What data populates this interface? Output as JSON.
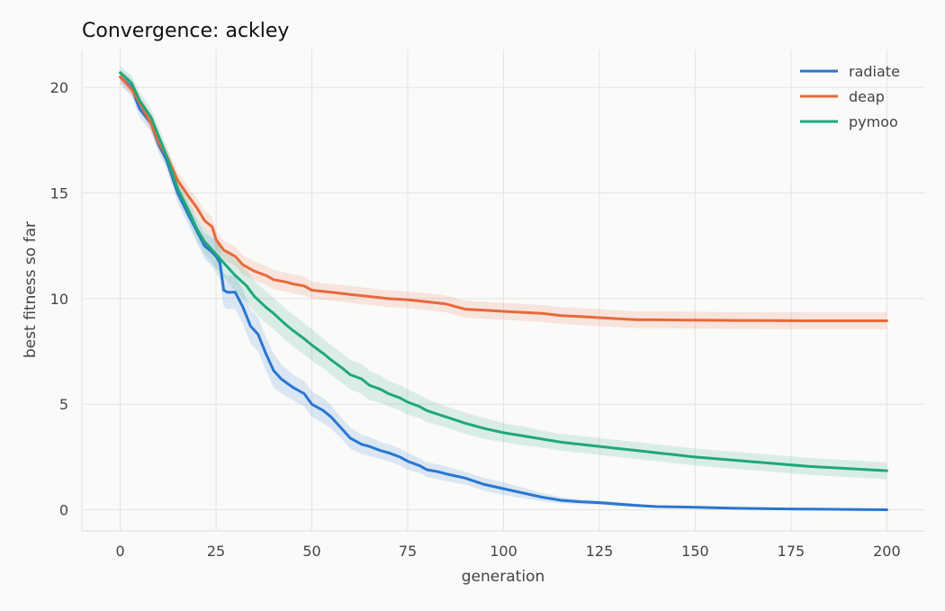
{
  "chart_data": {
    "type": "line",
    "title": "Convergence: ackley",
    "xlabel": "generation",
    "ylabel": "best fitness so far",
    "xlim": [
      -10,
      210
    ],
    "ylim": [
      -1.0,
      21.8
    ],
    "xticks": [
      0,
      25,
      50,
      75,
      100,
      125,
      150,
      175,
      200
    ],
    "yticks": [
      0,
      5,
      10,
      15,
      20
    ],
    "grid": true,
    "legend_position": "top-right",
    "series": [
      {
        "name": "radiate",
        "color": "#2a76d2",
        "band_color": "#2a76d2",
        "x": [
          0,
          3,
          5,
          8,
          10,
          12,
          15,
          18,
          20,
          22,
          24,
          25,
          26,
          27,
          28,
          30,
          32,
          34,
          36,
          38,
          40,
          42,
          45,
          48,
          50,
          53,
          55,
          58,
          60,
          63,
          65,
          68,
          70,
          73,
          75,
          78,
          80,
          83,
          85,
          90,
          95,
          100,
          105,
          110,
          115,
          120,
          125,
          130,
          135,
          140,
          150,
          160,
          170,
          180,
          190,
          200
        ],
        "y": [
          20.5,
          20.0,
          19.0,
          18.3,
          17.3,
          16.6,
          15.0,
          13.9,
          13.2,
          12.5,
          12.2,
          12.0,
          11.7,
          10.4,
          10.3,
          10.3,
          9.6,
          8.7,
          8.3,
          7.4,
          6.6,
          6.2,
          5.8,
          5.5,
          5.0,
          4.7,
          4.4,
          3.8,
          3.4,
          3.1,
          3.0,
          2.8,
          2.7,
          2.5,
          2.3,
          2.1,
          1.9,
          1.8,
          1.7,
          1.5,
          1.2,
          1.0,
          0.8,
          0.6,
          0.45,
          0.38,
          0.34,
          0.27,
          0.2,
          0.15,
          0.12,
          0.08,
          0.05,
          0.03,
          0.02,
          0.0
        ],
        "band": [
          0.35,
          0.4,
          0.4,
          0.4,
          0.4,
          0.4,
          0.45,
          0.5,
          0.55,
          0.6,
          0.7,
          0.75,
          0.8,
          0.8,
          0.8,
          0.8,
          0.8,
          0.8,
          0.8,
          0.8,
          0.8,
          0.7,
          0.6,
          0.6,
          0.6,
          0.6,
          0.55,
          0.5,
          0.5,
          0.45,
          0.45,
          0.4,
          0.4,
          0.4,
          0.4,
          0.35,
          0.35,
          0.35,
          0.35,
          0.3,
          0.3,
          0.3,
          0.25,
          0.2,
          0.15,
          0.12,
          0.1,
          0.1,
          0.08,
          0.06,
          0.05,
          0.04,
          0.03,
          0.02,
          0.02,
          0.02
        ]
      },
      {
        "name": "deap",
        "color": "#e8693a",
        "band_color": "#e8693a",
        "x": [
          0,
          3,
          5,
          8,
          10,
          12,
          15,
          18,
          20,
          22,
          24,
          25,
          27,
          30,
          32,
          35,
          38,
          40,
          43,
          45,
          48,
          50,
          55,
          60,
          65,
          70,
          75,
          80,
          85,
          88,
          90,
          95,
          100,
          105,
          110,
          115,
          120,
          125,
          130,
          135,
          140,
          150,
          160,
          170,
          180,
          190,
          200
        ],
        "y": [
          20.5,
          19.9,
          19.3,
          18.3,
          17.4,
          16.8,
          15.6,
          14.8,
          14.3,
          13.7,
          13.4,
          12.8,
          12.3,
          12.0,
          11.6,
          11.3,
          11.1,
          10.9,
          10.8,
          10.7,
          10.6,
          10.4,
          10.3,
          10.2,
          10.1,
          10.0,
          9.95,
          9.85,
          9.75,
          9.6,
          9.5,
          9.45,
          9.4,
          9.35,
          9.3,
          9.2,
          9.15,
          9.1,
          9.05,
          9.0,
          9.0,
          8.98,
          8.97,
          8.96,
          8.95,
          8.95,
          8.95
        ],
        "band": [
          0.3,
          0.3,
          0.35,
          0.35,
          0.35,
          0.4,
          0.4,
          0.4,
          0.45,
          0.45,
          0.45,
          0.45,
          0.45,
          0.45,
          0.45,
          0.45,
          0.45,
          0.45,
          0.45,
          0.45,
          0.45,
          0.4,
          0.4,
          0.4,
          0.4,
          0.4,
          0.4,
          0.4,
          0.4,
          0.4,
          0.4,
          0.4,
          0.4,
          0.4,
          0.4,
          0.4,
          0.4,
          0.4,
          0.4,
          0.4,
          0.4,
          0.4,
          0.4,
          0.4,
          0.4,
          0.4,
          0.4
        ]
      },
      {
        "name": "pymoo",
        "color": "#1fa87a",
        "band_color": "#1fa87a",
        "x": [
          0,
          3,
          5,
          8,
          10,
          12,
          15,
          18,
          20,
          22,
          25,
          28,
          30,
          33,
          35,
          38,
          40,
          43,
          45,
          48,
          50,
          53,
          55,
          58,
          60,
          63,
          65,
          68,
          70,
          73,
          75,
          78,
          80,
          85,
          90,
          95,
          100,
          105,
          110,
          115,
          120,
          125,
          130,
          135,
          140,
          145,
          150,
          160,
          170,
          180,
          190,
          200
        ],
        "y": [
          20.7,
          20.2,
          19.4,
          18.6,
          17.7,
          16.8,
          15.2,
          14.1,
          13.3,
          12.7,
          12.1,
          11.5,
          11.1,
          10.6,
          10.1,
          9.6,
          9.3,
          8.8,
          8.5,
          8.1,
          7.8,
          7.4,
          7.1,
          6.7,
          6.4,
          6.2,
          5.9,
          5.7,
          5.5,
          5.3,
          5.1,
          4.9,
          4.7,
          4.4,
          4.1,
          3.85,
          3.65,
          3.5,
          3.35,
          3.2,
          3.1,
          3.0,
          2.9,
          2.8,
          2.7,
          2.6,
          2.5,
          2.35,
          2.2,
          2.05,
          1.95,
          1.85
        ],
        "band": [
          0.3,
          0.35,
          0.4,
          0.4,
          0.45,
          0.45,
          0.5,
          0.5,
          0.55,
          0.6,
          0.65,
          0.7,
          0.75,
          0.75,
          0.75,
          0.75,
          0.75,
          0.75,
          0.75,
          0.75,
          0.75,
          0.7,
          0.7,
          0.7,
          0.7,
          0.7,
          0.7,
          0.65,
          0.6,
          0.6,
          0.6,
          0.55,
          0.55,
          0.5,
          0.5,
          0.5,
          0.45,
          0.45,
          0.4,
          0.4,
          0.4,
          0.4,
          0.4,
          0.4,
          0.4,
          0.4,
          0.4,
          0.4,
          0.4,
          0.4,
          0.4,
          0.4
        ]
      }
    ]
  }
}
